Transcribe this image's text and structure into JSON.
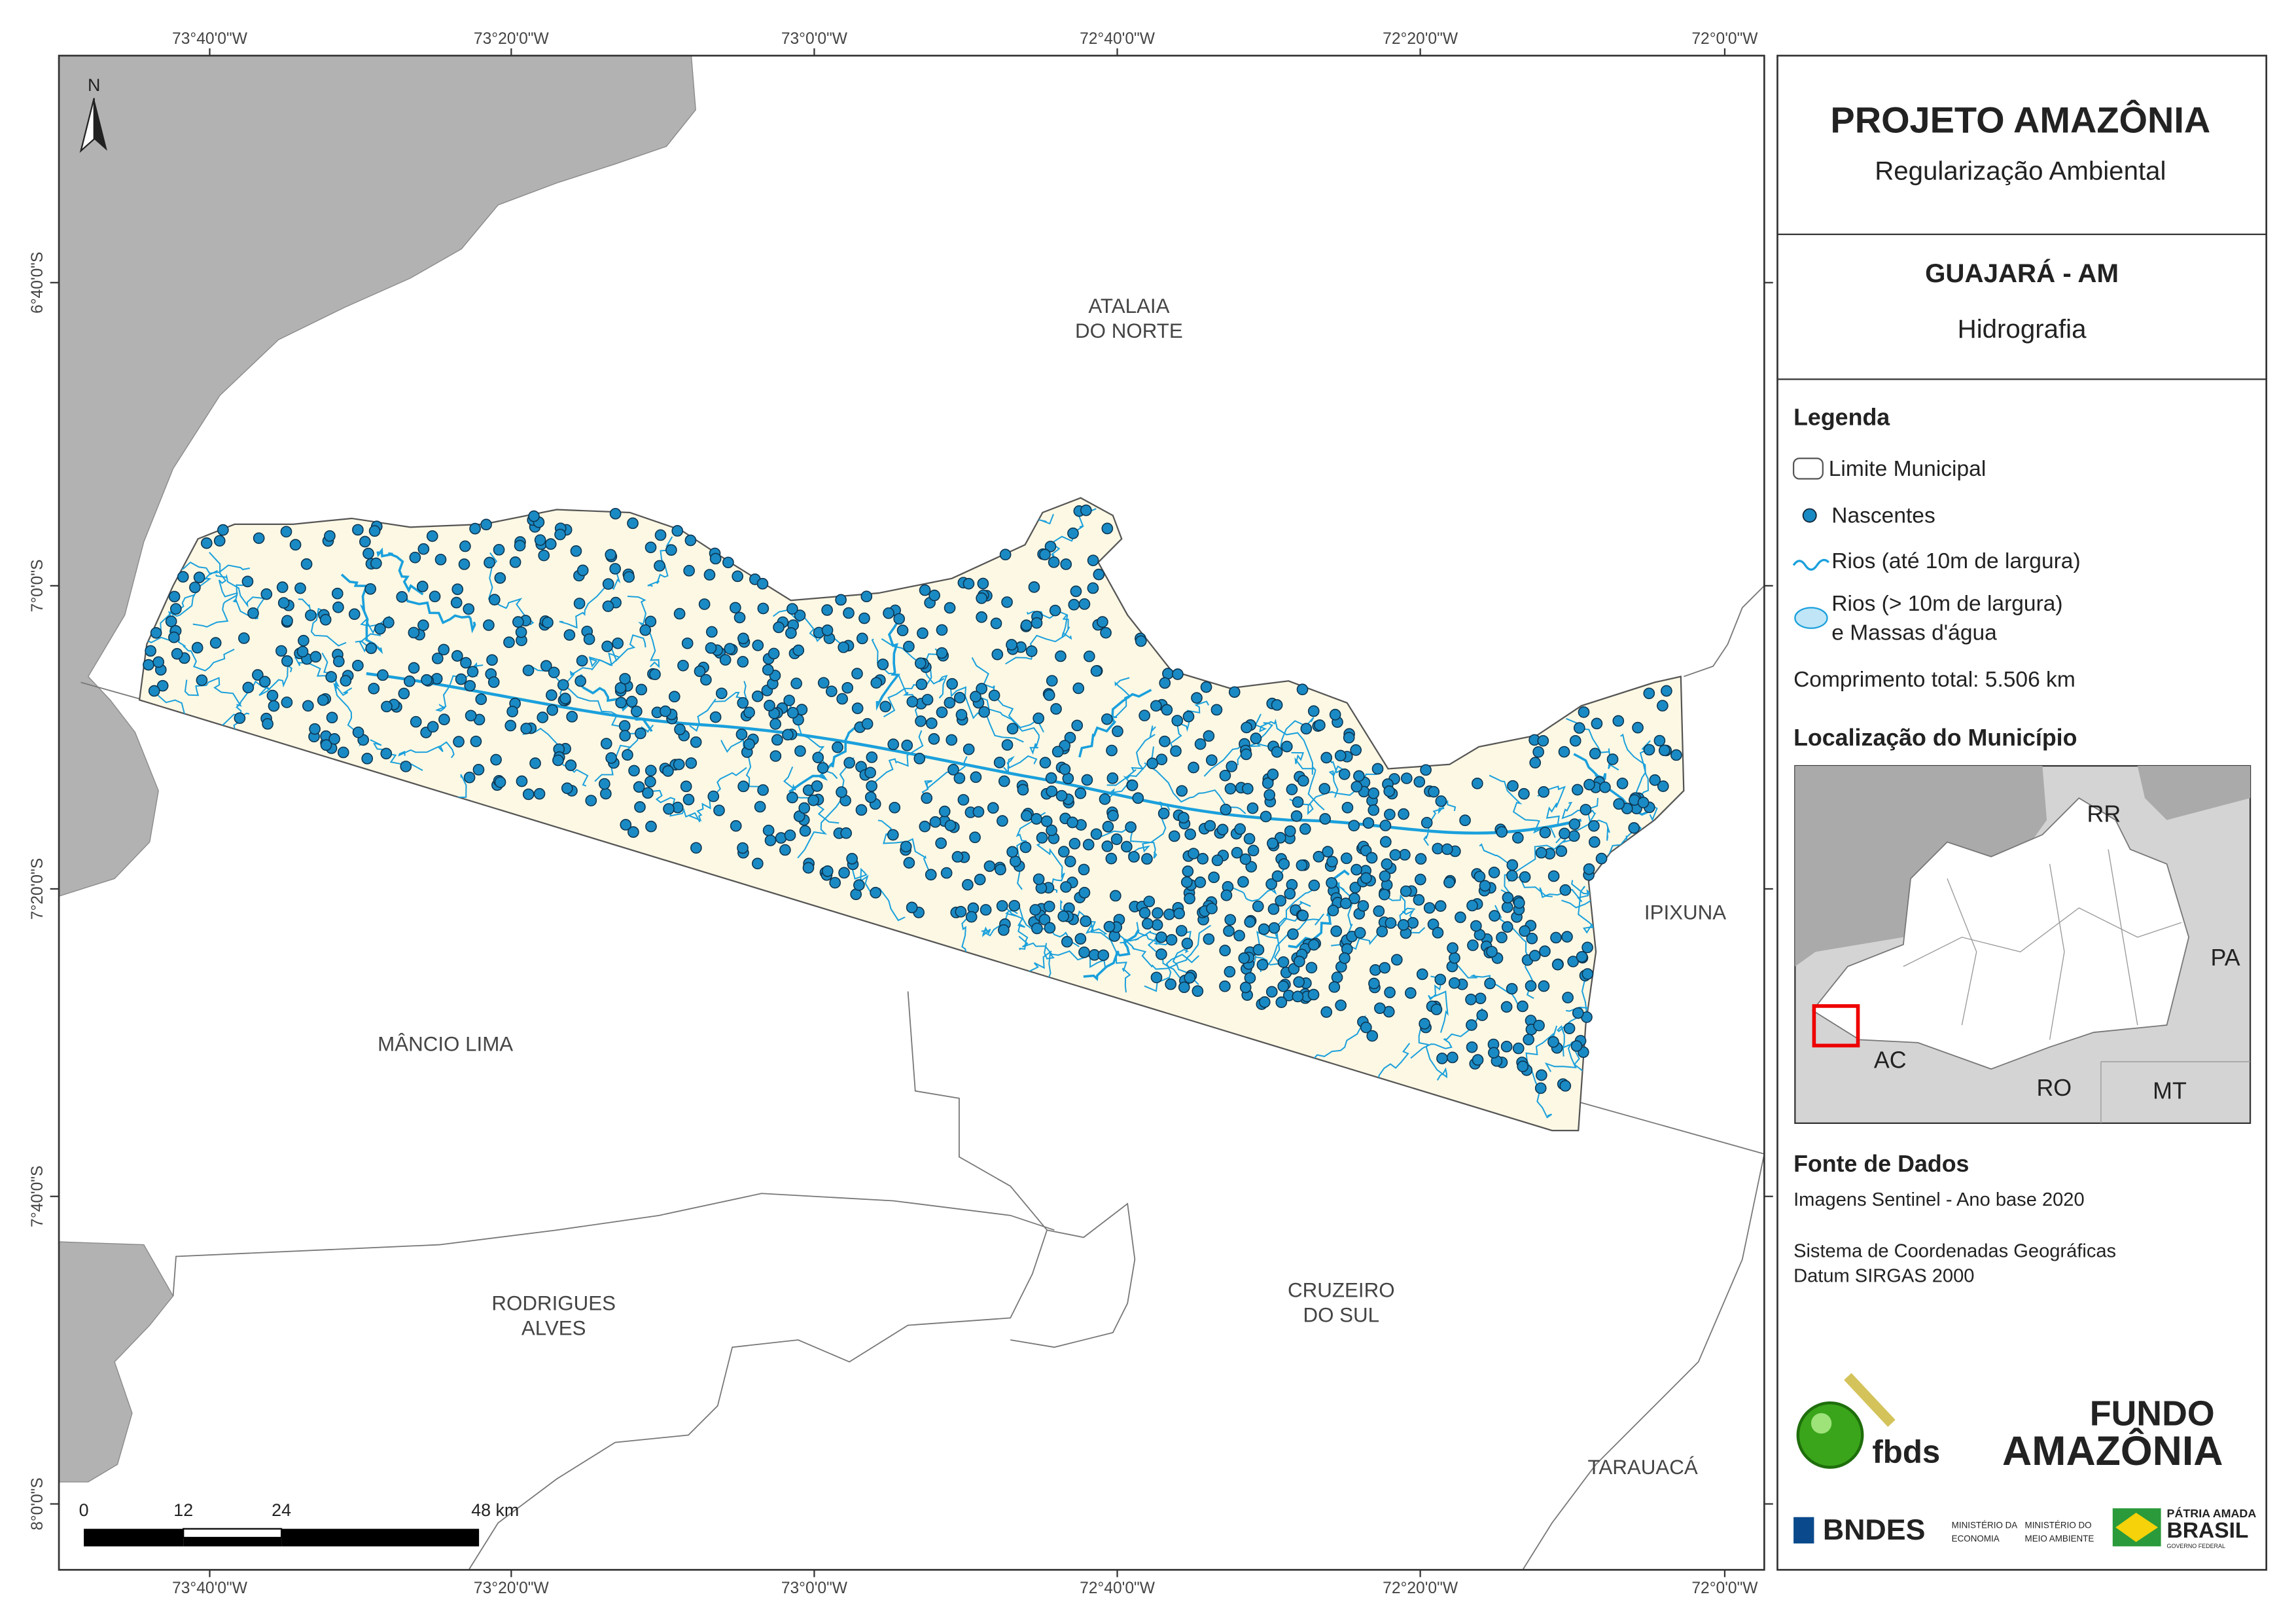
{
  "coordinates": {
    "longitudes": [
      "73°40'0\"W",
      "73°20'0\"W",
      "73°0'0\"W",
      "72°40'0\"W",
      "72°20'0\"W",
      "72°0'0\"W"
    ],
    "latitudes": [
      "6°40'0\"S",
      "7°0'0\"S",
      "7°20'0\"S",
      "7°40'0\"S",
      "8°0'0\"S"
    ]
  },
  "map": {
    "north": "N",
    "places": [
      {
        "lines": [
          "ATALAIA",
          "DO NORTE"
        ]
      },
      {
        "lines": [
          "IPIXUNA"
        ]
      },
      {
        "lines": [
          "MÂNCIO LIMA"
        ]
      },
      {
        "lines": [
          "RODRIGUES",
          "ALVES"
        ]
      },
      {
        "lines": [
          "CRUZEIRO",
          "DO SUL"
        ]
      },
      {
        "lines": [
          "TARAUACÁ"
        ]
      }
    ],
    "scale": [
      "0",
      "12",
      "24",
      "48 km"
    ]
  },
  "panel": {
    "title": "PROJETO AMAZÔNIA",
    "subtitle": "Regularização Ambiental",
    "municipality": "GUAJARÁ - AM",
    "theme": "Hidrografia",
    "legend": {
      "title": "Legenda",
      "items": [
        {
          "lines": [
            "Limite Municipal"
          ]
        },
        {
          "lines": [
            "Nascentes"
          ]
        },
        {
          "lines": [
            "Rios (até 10m de largura)"
          ]
        },
        {
          "lines": [
            "Rios (> 10m de largura)",
            "e Massas d'água"
          ]
        }
      ],
      "total": "Comprimento total:  5.506 km"
    },
    "location": {
      "title": "Localização do Município",
      "states": [
        "RR",
        "PA",
        "AC",
        "RO",
        "MT"
      ]
    },
    "sources": {
      "title": "Fonte de Dados",
      "lines": [
        "Imagens Sentinel - Ano base 2020",
        "Sistema de Coordenadas Geográficas",
        "Datum SIRGAS 2000"
      ]
    },
    "logos": {
      "fbds": "fbds",
      "fundo": [
        "FUNDO",
        "AMAZÔNIA"
      ],
      "bndes": "BNDES",
      "ministry1": [
        "MINISTÉRIO DA",
        "ECONOMIA"
      ],
      "ministry2": [
        "MINISTÉRIO DO",
        "MEIO AMBIENTE"
      ],
      "gov": [
        "PÁTRIA AMADA",
        "BRASIL",
        "GOVERNO FEDERAL"
      ]
    }
  }
}
